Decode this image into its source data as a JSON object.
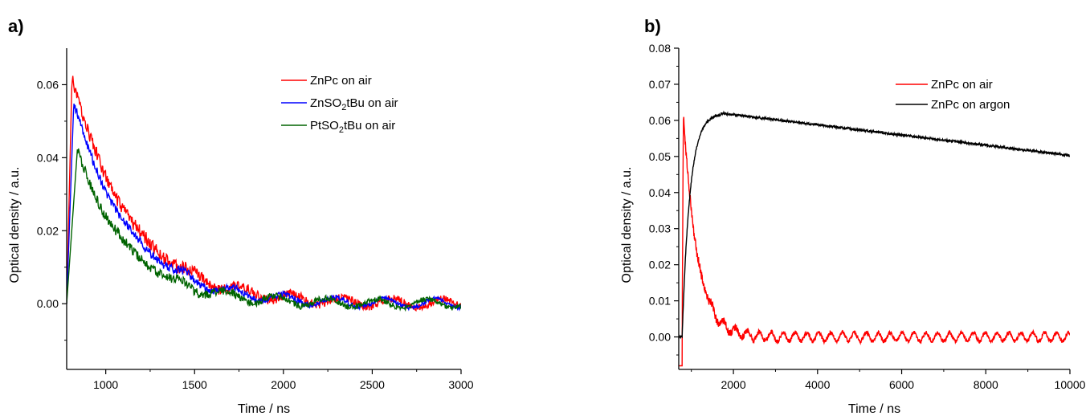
{
  "chart_data": [
    {
      "type": "line",
      "panel_label": "a)",
      "xlabel": "Time / ns",
      "ylabel": "Optical density / a.u.",
      "xlim": [
        780,
        3000
      ],
      "ylim": [
        -0.018,
        0.07
      ],
      "x_ticks": [
        1000,
        1500,
        2000,
        2500,
        3000
      ],
      "x_tick_labels": [
        "1000",
        "1500",
        "2000",
        "2500",
        "3000"
      ],
      "y_ticks": [
        0.0,
        0.02,
        0.04,
        0.06
      ],
      "y_tick_labels": [
        "0.00",
        "0.02",
        "0.04",
        "0.06"
      ],
      "grid": false,
      "legend_position": "top-right",
      "series": [
        {
          "name_parts": [
            "ZnPc on air"
          ],
          "color": "#ff0000",
          "peak_x": 810,
          "peak": 0.062,
          "tau": 330,
          "noise": 0.0018
        },
        {
          "name_parts": [
            "ZnSO",
            "2",
            "tBu on air"
          ],
          "color": "#0000ff",
          "peak_x": 820,
          "peak": 0.055,
          "tau": 315,
          "noise": 0.0012
        },
        {
          "name_parts": [
            "PtSO",
            "2",
            "tBu on air"
          ],
          "color": "#006400",
          "peak_x": 840,
          "peak": 0.042,
          "tau": 290,
          "noise": 0.0014
        }
      ]
    },
    {
      "type": "line",
      "panel_label": "b)",
      "xlabel": "Time / ns",
      "ylabel": "Optical density / a.u.",
      "xlim": [
        700,
        10000
      ],
      "ylim": [
        -0.009,
        0.08
      ],
      "x_ticks": [
        2000,
        4000,
        6000,
        8000,
        10000
      ],
      "x_tick_labels": [
        "2000",
        "4000",
        "6000",
        "8000",
        "10000"
      ],
      "y_ticks": [
        0.0,
        0.01,
        0.02,
        0.03,
        0.04,
        0.05,
        0.06,
        0.07,
        0.08
      ],
      "y_tick_labels": [
        "0.00",
        "0.01",
        "0.02",
        "0.03",
        "0.04",
        "0.05",
        "0.06",
        "0.07",
        "0.08"
      ],
      "grid": false,
      "legend_position": "top-right",
      "series": [
        {
          "name_parts": [
            "ZnPc on air"
          ],
          "color": "#ff0000",
          "kind": "air",
          "peak_x": 810,
          "peak": 0.062,
          "tau": 330,
          "noise": 0.0013
        },
        {
          "name_parts": [
            "ZnPc on argon"
          ],
          "color": "#000000",
          "kind": "argon",
          "plateau": 0.062,
          "end_value": 0.0503,
          "plateau_x": 1700,
          "noise": 0.0003
        }
      ]
    }
  ]
}
